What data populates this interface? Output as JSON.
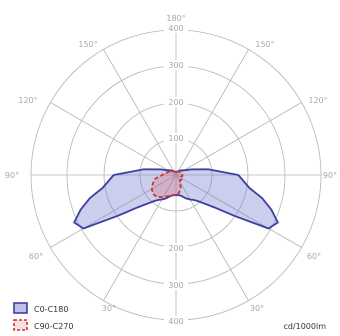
{
  "chart_data": {
    "type": "polar-photometric",
    "unit": "cd/1000lm",
    "radial_ticks": [
      100,
      200,
      300,
      400
    ],
    "rmax": 400,
    "angle_labels": [
      {
        "key": "top",
        "angle": 180,
        "text": "180°"
      },
      {
        "key": "ul150",
        "angle": 150,
        "text": "150°"
      },
      {
        "key": "ur150",
        "angle": 150,
        "text": "150°"
      },
      {
        "key": "ul120",
        "angle": 120,
        "text": "120°"
      },
      {
        "key": "ur120",
        "angle": 120,
        "text": "120°"
      },
      {
        "key": "l90",
        "angle": 90,
        "text": "90°"
      },
      {
        "key": "r90",
        "angle": 90,
        "text": "90°"
      },
      {
        "key": "ll60",
        "angle": 60,
        "text": "60°"
      },
      {
        "key": "lr60",
        "angle": 60,
        "text": "60°"
      },
      {
        "key": "ll30",
        "angle": 30,
        "text": "30°"
      },
      {
        "key": "lr30",
        "angle": 30,
        "text": "30°"
      }
    ],
    "series": [
      {
        "name": "C0-C180",
        "color": "#3b3fa0",
        "fill": "rgba(110,115,205,0.35)",
        "dash": false,
        "polygon_deg_cd": [
          [
            -180,
            8
          ],
          [
            -170,
            9
          ],
          [
            -160,
            10
          ],
          [
            -150,
            12
          ],
          [
            -140,
            15
          ],
          [
            -130,
            20
          ],
          [
            -120,
            26
          ],
          [
            -110,
            45
          ],
          [
            -100,
            90
          ],
          [
            -90,
            172
          ],
          [
            -80,
            206
          ],
          [
            -75,
            246
          ],
          [
            -70,
            280
          ],
          [
            -65,
            310
          ],
          [
            -60,
            295
          ],
          [
            -55,
            196
          ],
          [
            -50,
            140
          ],
          [
            -45,
            112
          ],
          [
            -40,
            94
          ],
          [
            -35,
            84
          ],
          [
            -30,
            78
          ],
          [
            -25,
            72
          ],
          [
            -20,
            66
          ],
          [
            -15,
            60
          ],
          [
            -10,
            57
          ],
          [
            -5,
            56
          ],
          [
            0,
            55
          ],
          [
            5,
            56
          ],
          [
            10,
            57
          ],
          [
            15,
            60
          ],
          [
            20,
            66
          ],
          [
            25,
            72
          ],
          [
            30,
            78
          ],
          [
            35,
            84
          ],
          [
            40,
            94
          ],
          [
            45,
            112
          ],
          [
            50,
            140
          ],
          [
            55,
            196
          ],
          [
            60,
            295
          ],
          [
            65,
            310
          ],
          [
            70,
            280
          ],
          [
            75,
            246
          ],
          [
            80,
            206
          ],
          [
            90,
            172
          ],
          [
            100,
            90
          ],
          [
            110,
            45
          ],
          [
            120,
            26
          ],
          [
            130,
            20
          ],
          [
            140,
            15
          ],
          [
            150,
            12
          ],
          [
            160,
            10
          ],
          [
            170,
            9
          ]
        ]
      },
      {
        "name": "C90-C270",
        "color": "#d0312d",
        "fill": "rgba(220,90,90,0.25)",
        "dash": true,
        "polygon_deg_cd": [
          [
            -180,
            8
          ],
          [
            -150,
            12
          ],
          [
            -120,
            20
          ],
          [
            -100,
            30
          ],
          [
            -90,
            38
          ],
          [
            -80,
            58
          ],
          [
            -70,
            68
          ],
          [
            -60,
            77
          ],
          [
            -50,
            82
          ],
          [
            -40,
            80
          ],
          [
            -30,
            70
          ],
          [
            -20,
            62
          ],
          [
            -10,
            57
          ],
          [
            0,
            55
          ],
          [
            10,
            50
          ],
          [
            20,
            38
          ],
          [
            30,
            22
          ],
          [
            40,
            18
          ],
          [
            50,
            20
          ],
          [
            60,
            14
          ],
          [
            70,
            14
          ],
          [
            80,
            18
          ],
          [
            90,
            18
          ],
          [
            120,
            15
          ],
          [
            150,
            12
          ]
        ]
      }
    ],
    "legend_position": "bottom-left"
  }
}
